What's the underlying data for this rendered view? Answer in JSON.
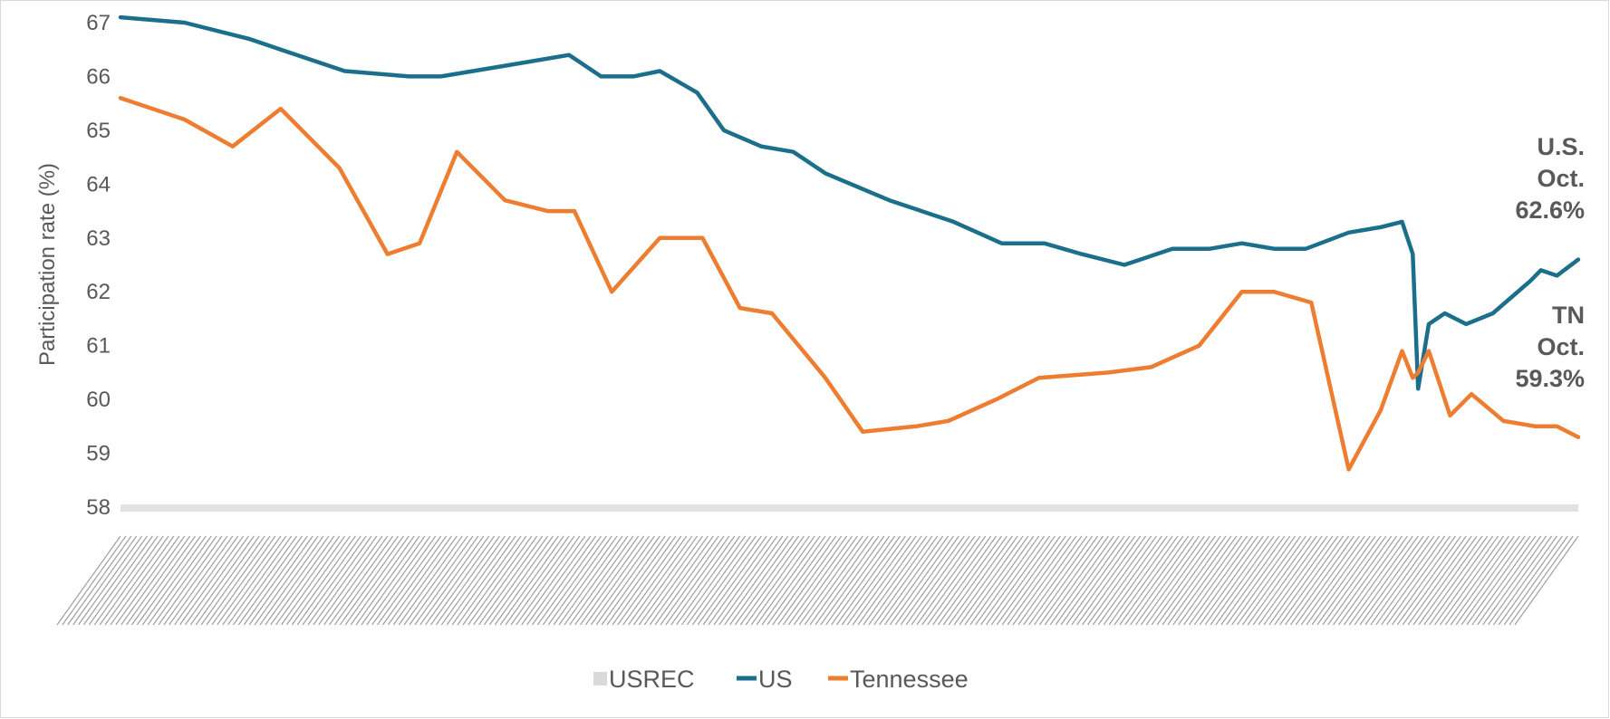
{
  "chart_data": {
    "type": "line",
    "ylabel": "Participation rate (%)",
    "ylim": [
      58,
      67
    ],
    "yticks": [
      "67",
      "66",
      "65",
      "64",
      "63",
      "62",
      "61",
      "60",
      "59",
      "58"
    ],
    "x_range": [
      "2000-01",
      "2022-10"
    ],
    "x_tick_labels_legible": false,
    "grid": false,
    "legend_position": "bottom",
    "legend": [
      {
        "label": "USREC",
        "color": "#d9d9d9",
        "symbol": "square"
      },
      {
        "label": "US",
        "color": "#1b6f8a",
        "symbol": "line"
      },
      {
        "label": "Tennessee",
        "color": "#ed7d31",
        "symbol": "line"
      }
    ],
    "annotations": [
      {
        "series": "US",
        "lines": [
          "U.S.",
          "Oct.",
          "62.6%"
        ]
      },
      {
        "series": "Tennessee",
        "lines": [
          "TN",
          "Oct.",
          "59.3%"
        ]
      }
    ],
    "series": [
      {
        "name": "US",
        "color": "#1b6f8a",
        "x": [
          "2000-01",
          "2001-01",
          "2002-01",
          "2002-07",
          "2003-07",
          "2004-07",
          "2005-01",
          "2006-01",
          "2007-01",
          "2007-07",
          "2008-01",
          "2008-06",
          "2009-01",
          "2009-06",
          "2010-01",
          "2010-07",
          "2011-01",
          "2012-01",
          "2013-01",
          "2013-10",
          "2014-06",
          "2015-01",
          "2015-09",
          "2016-06",
          "2017-01",
          "2017-07",
          "2018-01",
          "2018-07",
          "2019-03",
          "2019-09",
          "2020-01",
          "2020-03",
          "2020-04",
          "2020-06",
          "2020-09",
          "2021-01",
          "2021-06",
          "2022-01",
          "2022-03",
          "2022-06",
          "2022-10"
        ],
        "y": [
          67.1,
          67.0,
          66.7,
          66.5,
          66.1,
          66.0,
          66.0,
          66.2,
          66.4,
          66.0,
          66.0,
          66.1,
          65.7,
          65.0,
          64.7,
          64.6,
          64.2,
          63.7,
          63.3,
          62.9,
          62.9,
          62.7,
          62.5,
          62.8,
          62.8,
          62.9,
          62.8,
          62.8,
          63.1,
          63.2,
          63.3,
          62.7,
          60.2,
          61.4,
          61.6,
          61.4,
          61.6,
          62.2,
          62.4,
          62.3,
          62.6
        ]
      },
      {
        "name": "Tennessee",
        "color": "#ed7d31",
        "x": [
          "2000-01",
          "2001-01",
          "2001-10",
          "2002-07",
          "2003-06",
          "2004-03",
          "2004-09",
          "2005-04",
          "2006-01",
          "2006-09",
          "2007-02",
          "2007-09",
          "2008-06",
          "2009-02",
          "2009-09",
          "2010-03",
          "2011-01",
          "2011-08",
          "2012-06",
          "2012-12",
          "2013-09",
          "2014-05",
          "2015-06",
          "2016-02",
          "2016-11",
          "2017-07",
          "2018-01",
          "2018-08",
          "2019-03",
          "2019-09",
          "2020-01",
          "2020-03",
          "2020-04",
          "2020-06",
          "2020-10",
          "2021-02",
          "2021-08",
          "2022-02",
          "2022-06",
          "2022-08",
          "2022-10"
        ],
        "y": [
          65.6,
          65.2,
          64.7,
          65.4,
          64.3,
          62.7,
          62.9,
          64.6,
          63.7,
          63.5,
          63.5,
          62.0,
          63.0,
          63.0,
          61.7,
          61.6,
          60.4,
          59.4,
          59.5,
          59.6,
          60.0,
          60.4,
          60.5,
          60.6,
          61.0,
          62.0,
          62.0,
          61.8,
          58.7,
          59.8,
          60.9,
          60.4,
          60.5,
          60.9,
          59.7,
          60.1,
          59.6,
          59.5,
          59.5,
          59.4,
          59.3
        ]
      }
    ]
  }
}
